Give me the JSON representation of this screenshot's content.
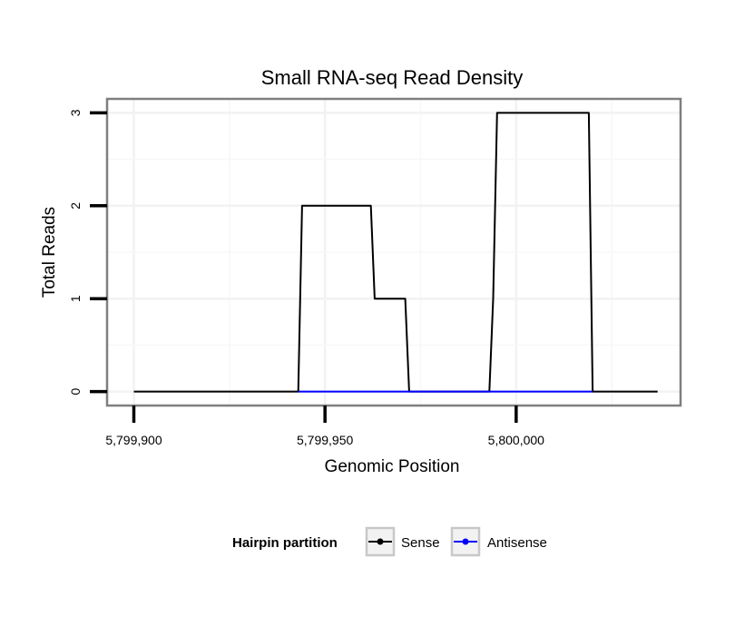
{
  "chart_data": {
    "type": "line",
    "title": "Small RNA-seq Read Density",
    "xlabel": "Genomic Position",
    "ylabel": "Total Reads",
    "xlim": [
      5799893,
      5800043
    ],
    "ylim": [
      -0.15,
      3.15
    ],
    "x_ticks": [
      5799900,
      5799950,
      5800000
    ],
    "x_tick_labels": [
      "5,799,900",
      "5,799,950",
      "5,800,000"
    ],
    "y_ticks": [
      0,
      1,
      2,
      3
    ],
    "y_tick_labels": [
      "0",
      "1",
      "2",
      "3"
    ],
    "grid": true,
    "legend": {
      "title": "Hairpin partition",
      "position": "bottom",
      "entries": [
        "Sense",
        "Antisense"
      ]
    },
    "series": [
      {
        "name": "Sense",
        "color": "#000000",
        "x": [
          5799900,
          5799943,
          5799944,
          5799962,
          5799963,
          5799971,
          5799972,
          5799993,
          5799994,
          5799995,
          5800019,
          5800020,
          5800037
        ],
        "values": [
          0,
          0,
          2,
          2,
          1,
          1,
          0,
          0,
          1,
          3,
          3,
          0,
          0
        ]
      },
      {
        "name": "Antisense",
        "color": "#0000ff",
        "x": [
          5799943,
          5799972,
          5799993,
          5800020
        ],
        "values": [
          0,
          0,
          0,
          0
        ]
      }
    ]
  }
}
